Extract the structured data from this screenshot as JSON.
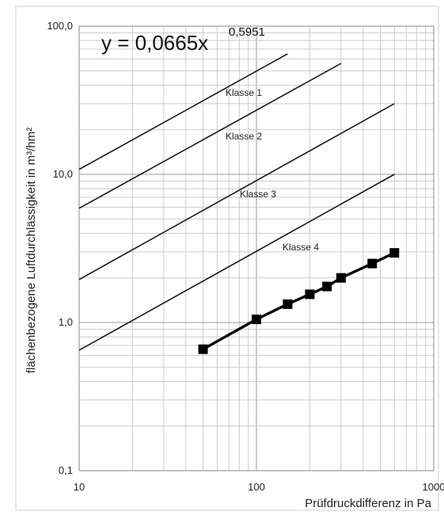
{
  "chart_data": {
    "type": "line",
    "xscale": "log",
    "yscale": "log",
    "xlim": [
      10,
      1000
    ],
    "ylim": [
      0.1,
      100
    ],
    "x_ticks": [
      "10",
      "100",
      "1000"
    ],
    "y_ticks": [
      "0,1",
      "1,0",
      "10,0",
      "100,0"
    ],
    "xlabel": "Prüfdruckdifferenz in Pa",
    "ylabel": "flächenbezogene Luftdurchlässigkeit in m³/hm²",
    "equation": {
      "base": "y = 0,0665x",
      "exponent": "0,5951"
    },
    "grid": true,
    "class_lines": [
      {
        "label": "Klasse 1",
        "x": [
          10,
          150
        ],
        "y": [
          10.8,
          65
        ]
      },
      {
        "label": "Klasse 2",
        "x": [
          10,
          300
        ],
        "y": [
          5.9,
          56
        ]
      },
      {
        "label": "Klasse 3",
        "x": [
          10,
          600
        ],
        "y": [
          1.95,
          30
        ]
      },
      {
        "label": "Klasse 4",
        "x": [
          10,
          600
        ],
        "y": [
          0.65,
          10
        ]
      }
    ],
    "measurement": {
      "x": [
        50,
        100,
        150,
        200,
        250,
        300,
        450,
        600
      ],
      "y": [
        0.66,
        1.05,
        1.33,
        1.55,
        1.75,
        2.0,
        2.5,
        2.95
      ]
    }
  }
}
